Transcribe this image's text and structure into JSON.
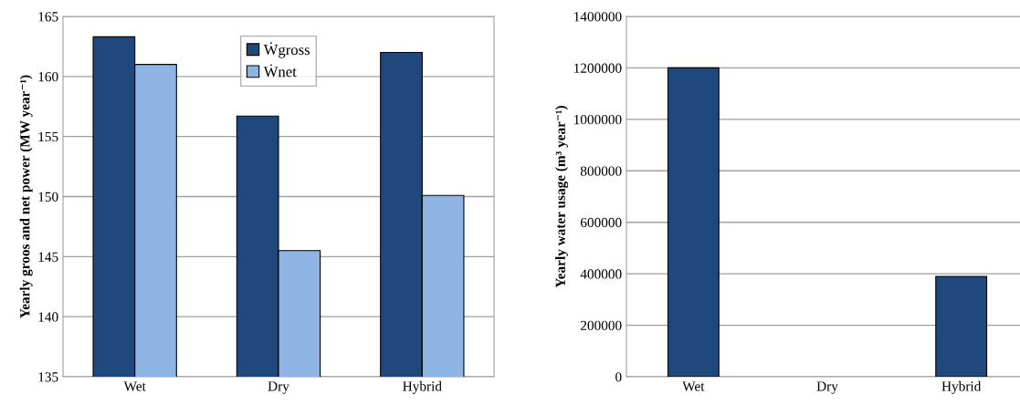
{
  "chart_data": [
    {
      "type": "bar",
      "categories": [
        "Wet",
        "Dry",
        "Hybrid"
      ],
      "ylabel": "Yearly groos and net power (MW year⁻¹)",
      "ylim": [
        135,
        165
      ],
      "yticks": [
        135,
        140,
        145,
        150,
        155,
        160,
        165
      ],
      "grid": "y",
      "legend": "top",
      "series": [
        {
          "name": "Ẇgross",
          "color": "#1f497d",
          "values": [
            163.3,
            156.7,
            162.0
          ]
        },
        {
          "name": "Ẇnet",
          "color": "#8eb4e3",
          "values": [
            161.0,
            145.5,
            150.1
          ]
        }
      ]
    },
    {
      "type": "bar",
      "categories": [
        "Wet",
        "Dry",
        "Hybrid"
      ],
      "ylabel": "Yearly water usage (m³ year⁻¹)",
      "ylim": [
        0,
        1400000
      ],
      "yticks": [
        0,
        200000,
        400000,
        600000,
        800000,
        1000000,
        1200000,
        1400000
      ],
      "grid": "y",
      "series": [
        {
          "color": "#1f497d",
          "values": [
            1200000,
            0,
            390000
          ]
        }
      ]
    }
  ]
}
